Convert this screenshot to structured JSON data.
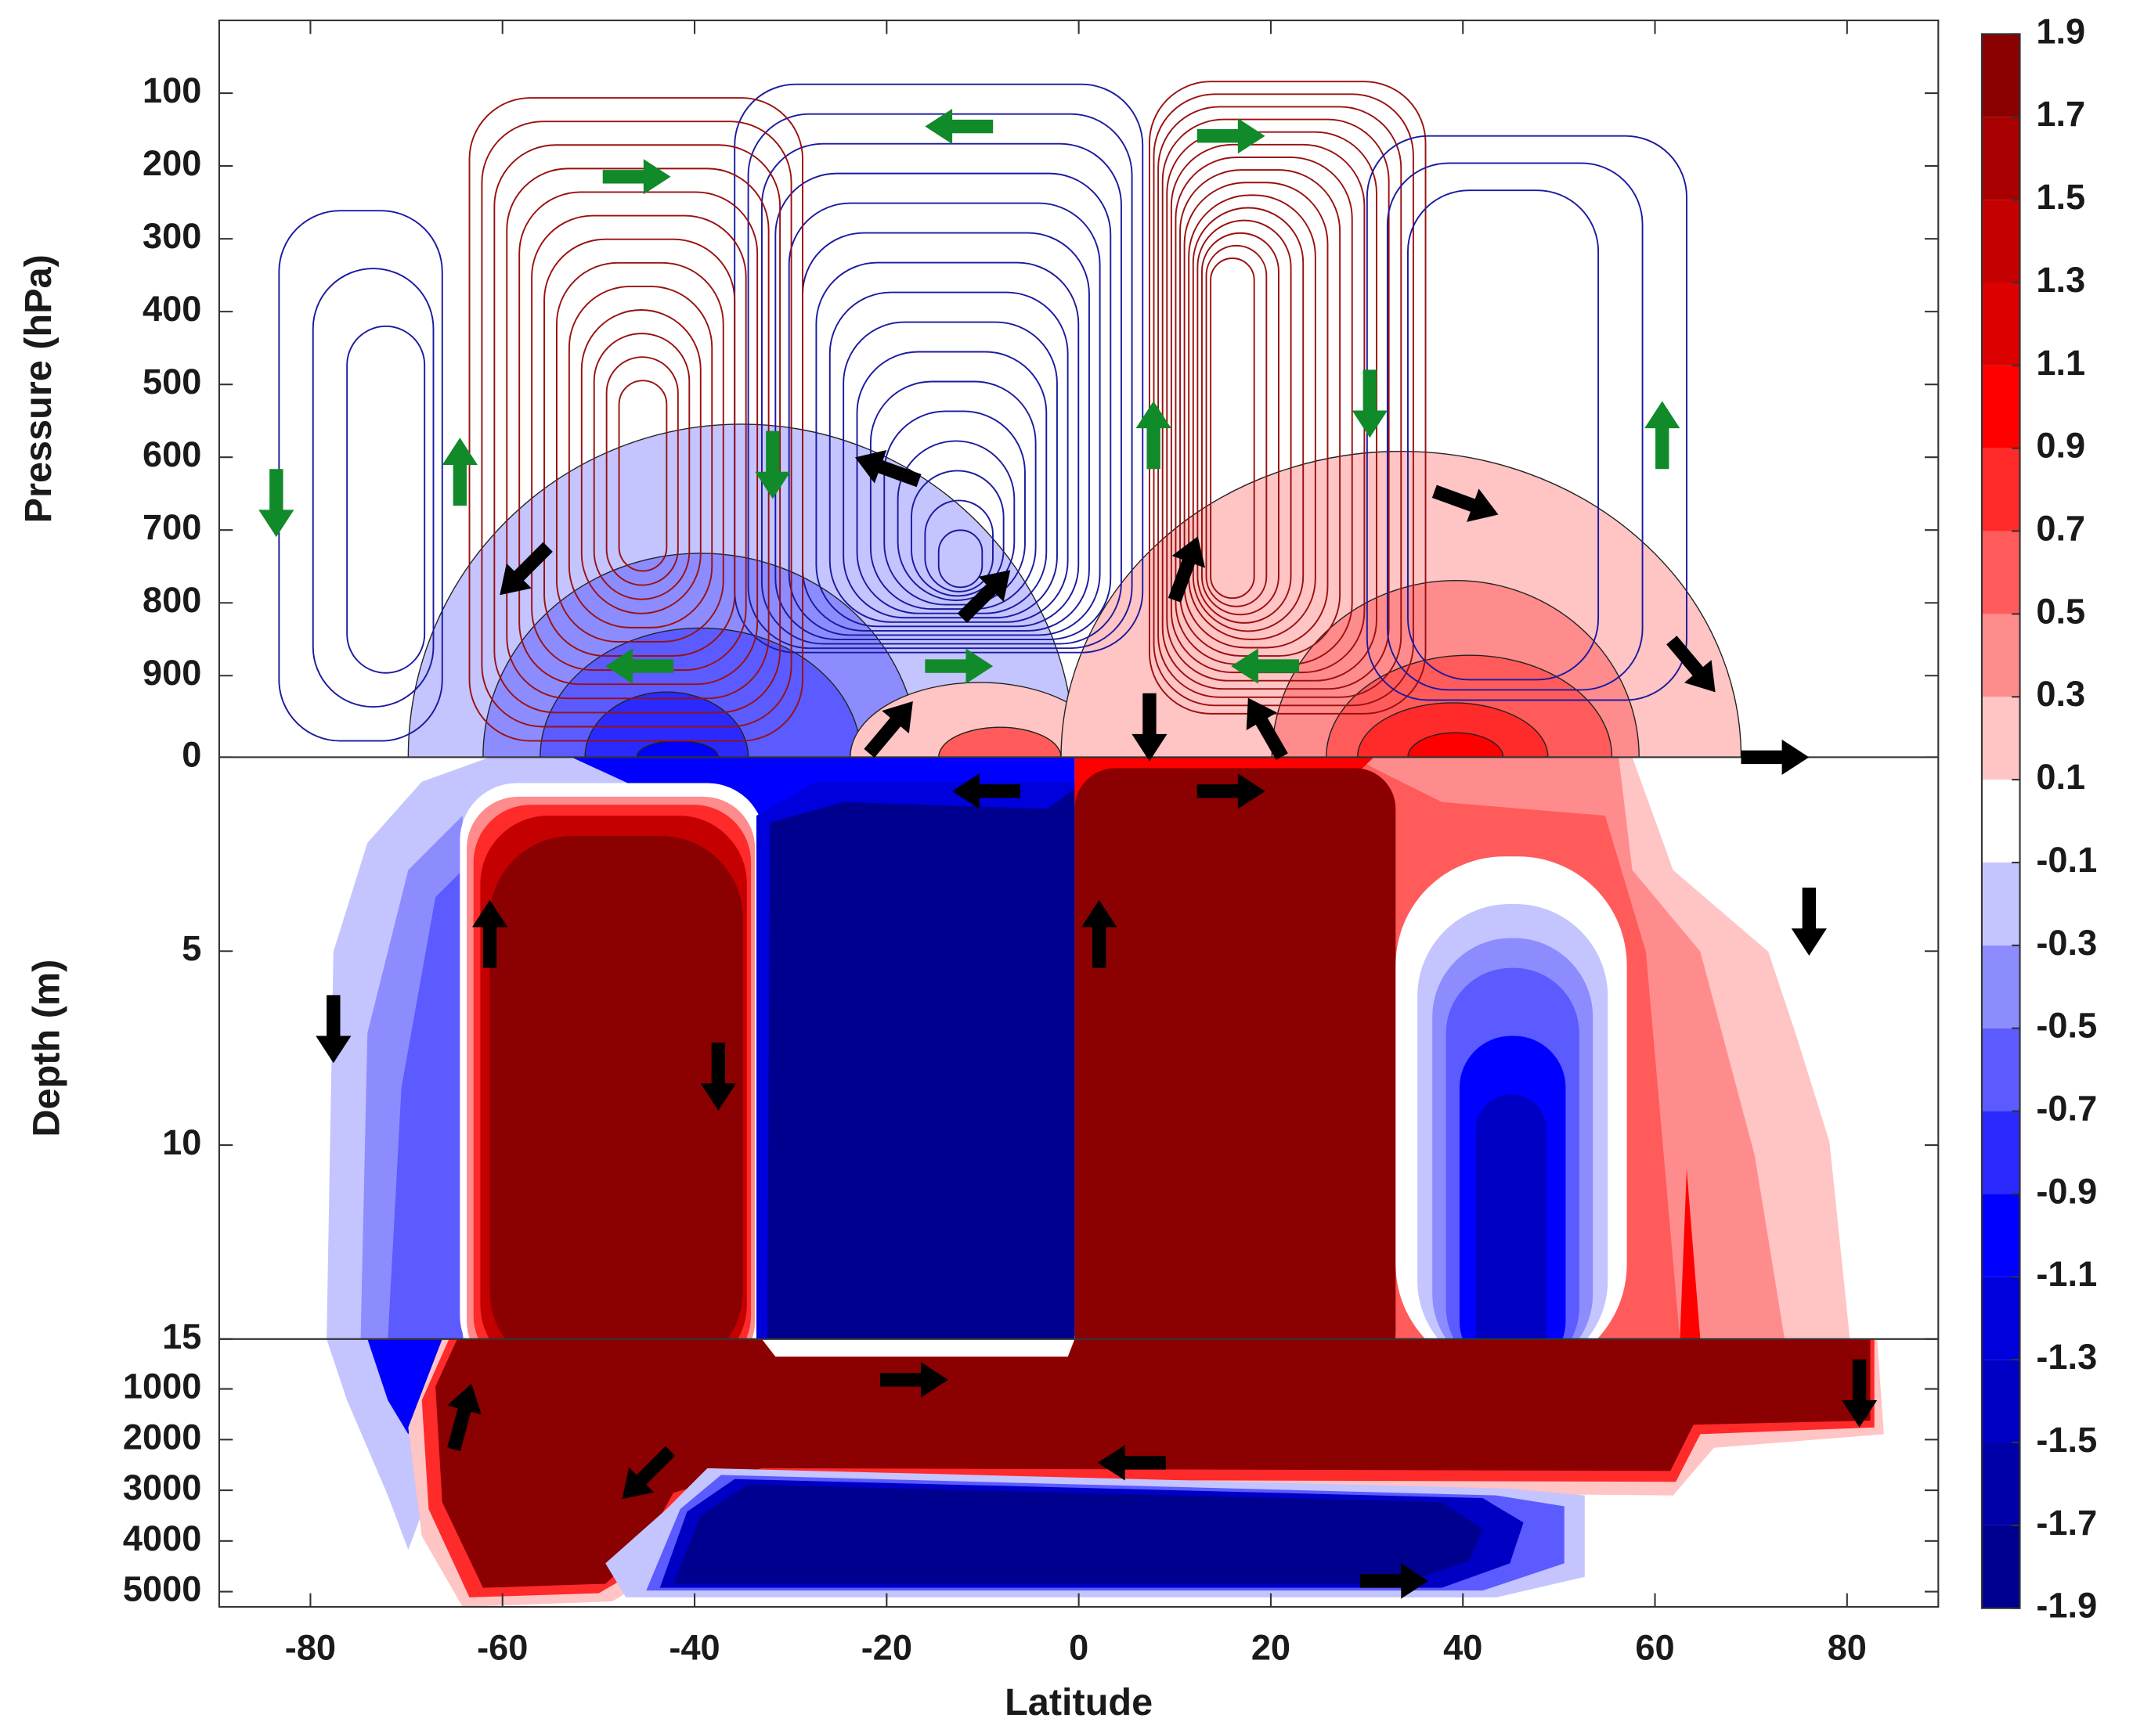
{
  "chart_data": {
    "type": "contour",
    "xlabel": "Latitude",
    "xlim": [
      -89.5,
      89.5
    ],
    "xticks": [
      -80,
      -60,
      -40,
      -20,
      0,
      20,
      40,
      60,
      80
    ],
    "panels": [
      {
        "ylabel": "Pressure (hPa)",
        "ylim": [
          1012,
          0
        ],
        "yticks": [
          100,
          200,
          300,
          400,
          500,
          600,
          700,
          800,
          900
        ]
      },
      {
        "ylabel": "Depth (m)",
        "ylim": [
          15,
          0
        ],
        "yticks": [
          0,
          5,
          10,
          15
        ]
      },
      {
        "ylim": [
          5300,
          15
        ],
        "yticks": [
          1000,
          2000,
          3000,
          4000,
          5000
        ]
      }
    ],
    "colorbar": {
      "clim": [
        -1.9,
        1.9
      ],
      "ticks": [
        -1.9,
        -1.7,
        -1.5,
        -1.3,
        -1.1,
        -0.9,
        -0.7,
        -0.5,
        -0.3,
        -0.1,
        0.1,
        0.3,
        0.5,
        0.7,
        0.9,
        1.1,
        1.3,
        1.5,
        1.7,
        1.9
      ],
      "colors": [
        "#00008f",
        "#0000a8",
        "#0000c4",
        "#0000dc",
        "#0000ff",
        "#2a2aff",
        "#5b5bff",
        "#8c8cff",
        "#c4c4ff",
        "#ffffff",
        "#ffc4c4",
        "#ff8c8c",
        "#ff5b5b",
        "#ff2a2a",
        "#ff0000",
        "#dc0000",
        "#c40000",
        "#a80000",
        "#8b0000"
      ]
    }
  }
}
